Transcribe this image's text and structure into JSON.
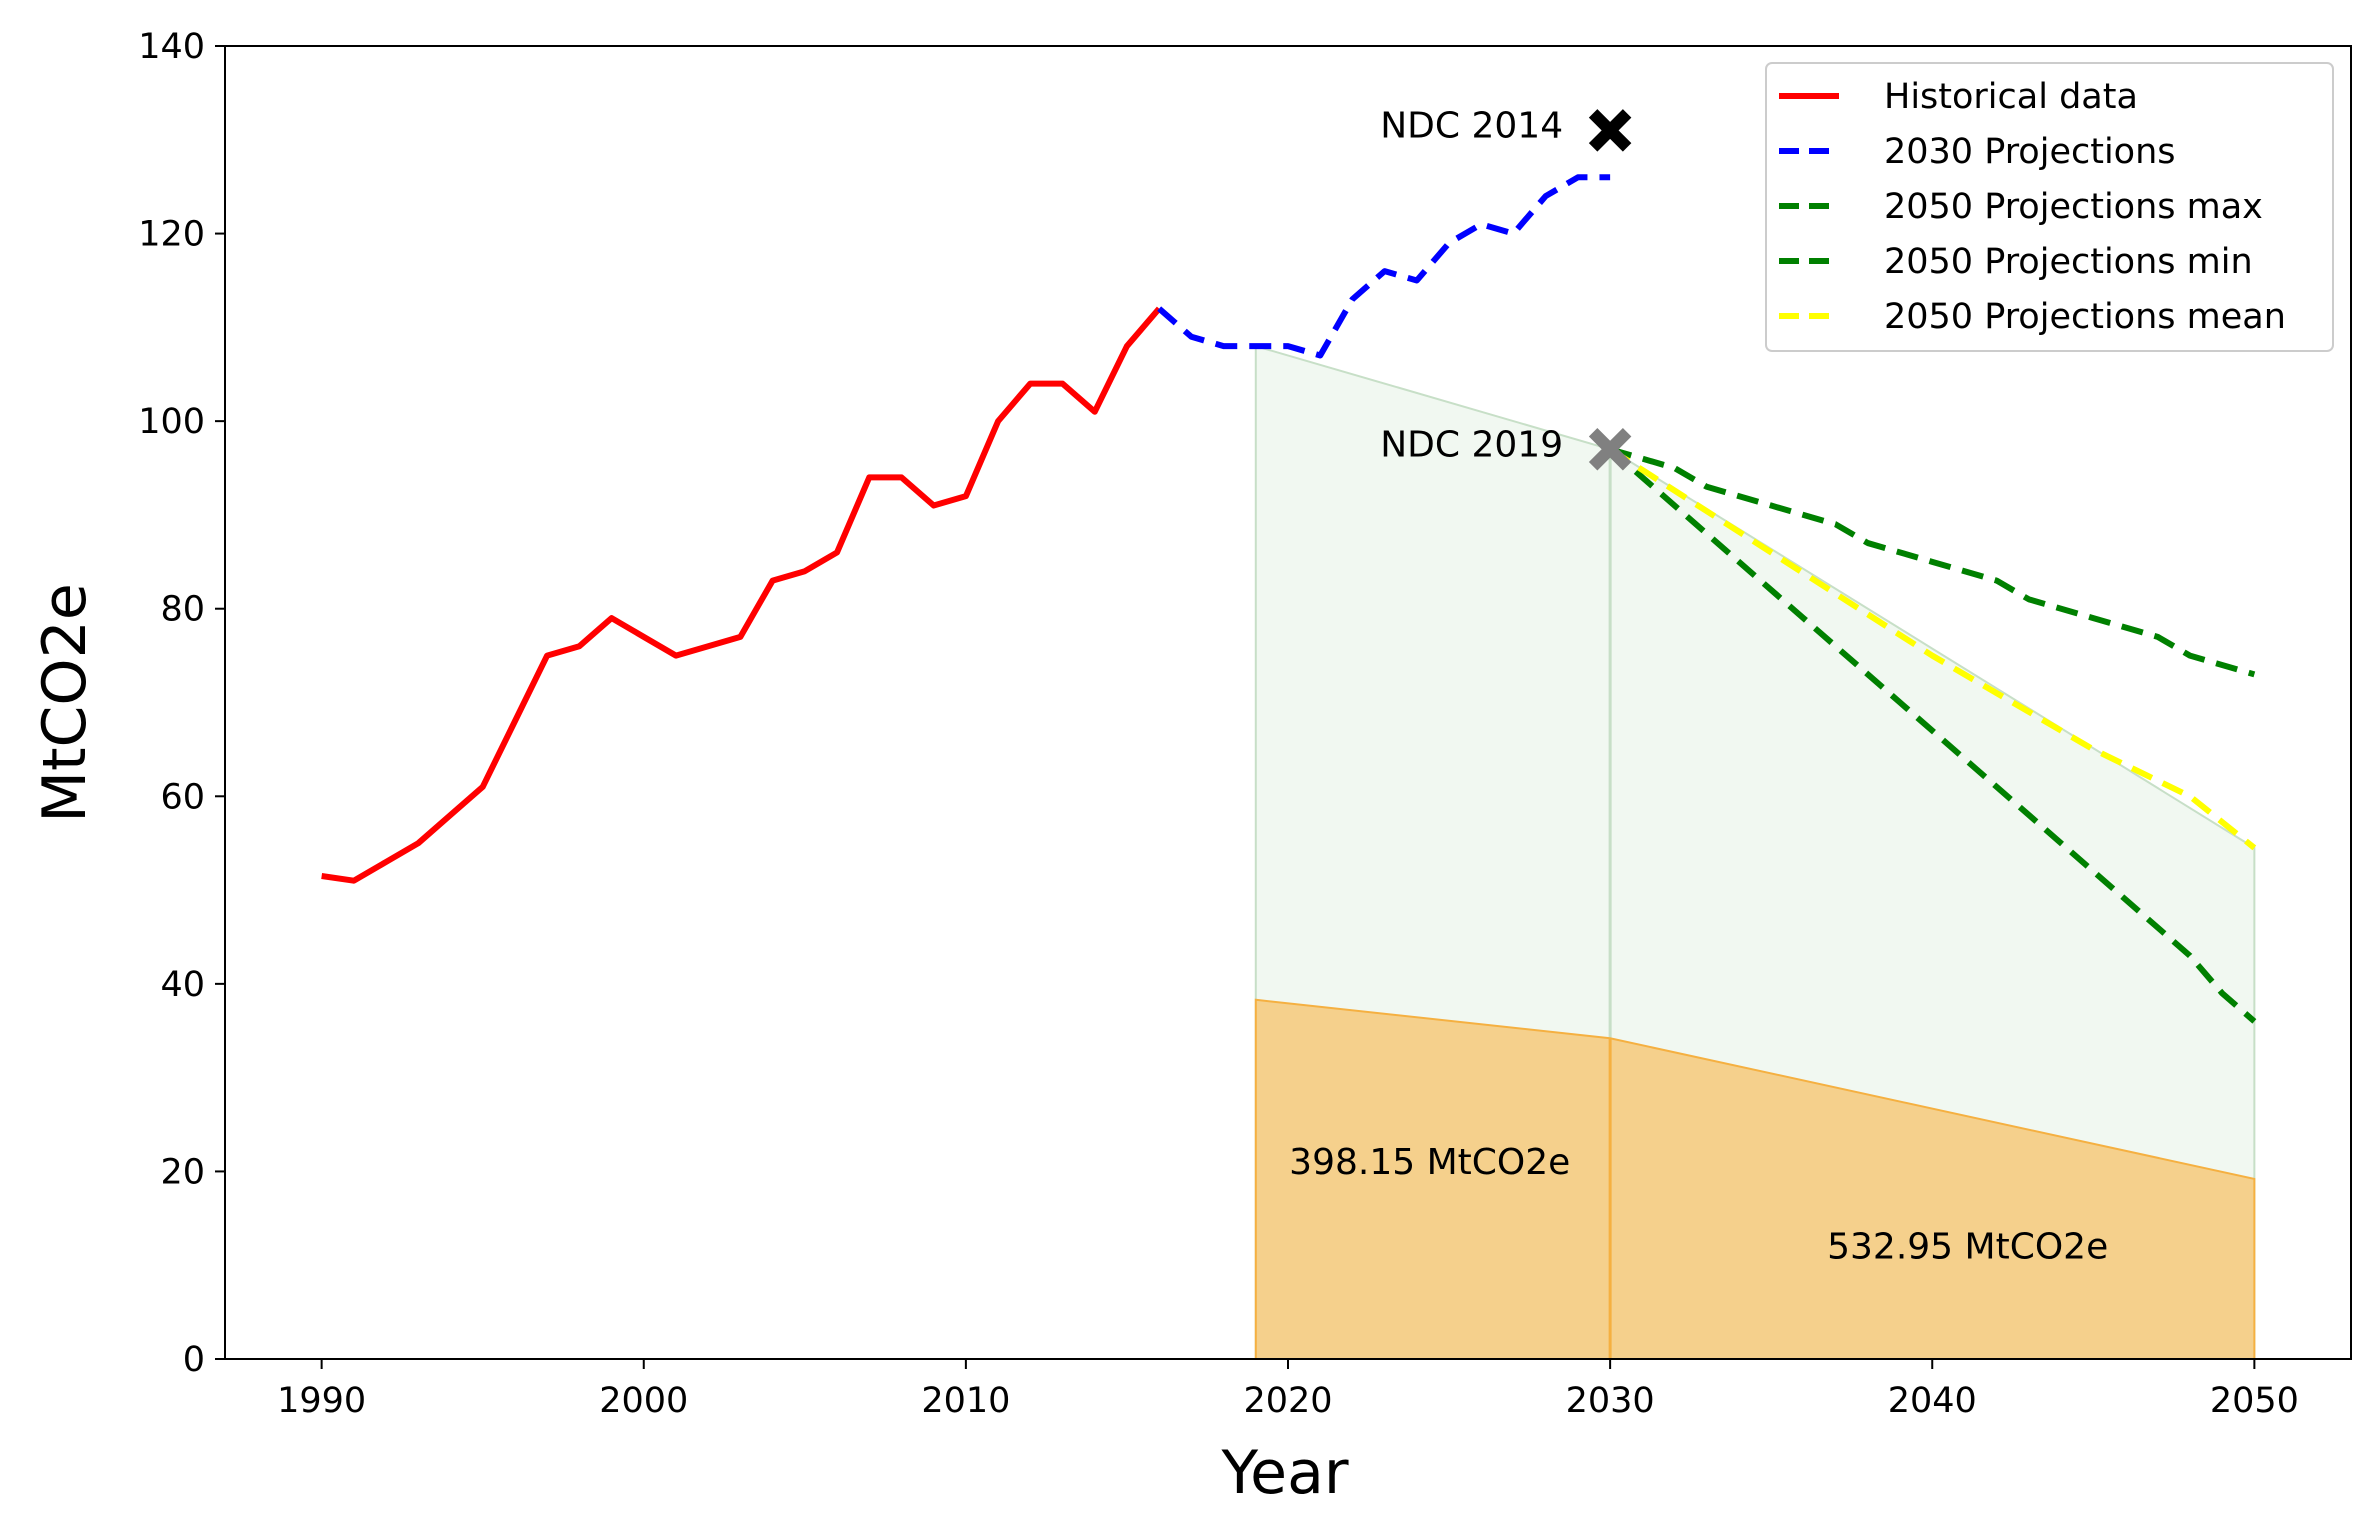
{
  "chart_data": {
    "type": "line",
    "title": "",
    "xlabel": "Year",
    "ylabel": "MtCO2e",
    "xlim": [
      1987,
      2053
    ],
    "ylim": [
      0,
      140
    ],
    "xticks": [
      1990,
      2000,
      2010,
      2020,
      2030,
      2040,
      2050
    ],
    "yticks": [
      0,
      20,
      40,
      60,
      80,
      100,
      120,
      140
    ],
    "legend_position": "top-right",
    "colors": {
      "historical": "#ff0000",
      "proj2030": "#0000ff",
      "proj2050": "#008000",
      "mean2050": "#ffff00",
      "green_fill": "#e6f3e6",
      "orange_fill": "#f5d08c",
      "orange_edge": "#f5b041",
      "ndc2014_marker": "#000000",
      "ndc2019_marker": "#808080"
    },
    "series": [
      {
        "key": "historical",
        "name": "Historical data",
        "style": "solid",
        "x": [
          1990,
          1991,
          1992,
          1993,
          1994,
          1995,
          1996,
          1997,
          1998,
          1999,
          2000,
          2001,
          2002,
          2003,
          2004,
          2005,
          2006,
          2007,
          2008,
          2009,
          2010,
          2011,
          2012,
          2013,
          2014,
          2015,
          2016
        ],
        "y": [
          51.5,
          51,
          53,
          55,
          58,
          61,
          68,
          75,
          76,
          79,
          77,
          75,
          76,
          77,
          83,
          84,
          86,
          94,
          94,
          91,
          92,
          100,
          104,
          104,
          101,
          108,
          112
        ]
      },
      {
        "key": "proj2030",
        "name": "2030 Projections",
        "style": "dashed",
        "x": [
          2016,
          2017,
          2018,
          2019,
          2020,
          2021,
          2022,
          2023,
          2024,
          2025,
          2026,
          2027,
          2028,
          2029,
          2030
        ],
        "y": [
          112,
          109,
          108,
          108,
          108,
          107,
          113,
          116,
          115,
          119,
          121,
          120,
          124,
          126,
          126
        ]
      },
      {
        "key": "max2050",
        "name": "2050 Projections max",
        "style": "dashed",
        "x": [
          2030,
          2032,
          2033,
          2035,
          2037,
          2038,
          2040,
          2042,
          2043,
          2045,
          2047,
          2048,
          2050
        ],
        "y": [
          97,
          95,
          93,
          91,
          89,
          87,
          85,
          83,
          81,
          79,
          77,
          75,
          73
        ]
      },
      {
        "key": "min2050",
        "name": "2050 Projections min",
        "style": "dashed",
        "x": [
          2030,
          2033,
          2036,
          2039,
          2042,
          2045,
          2048,
          2049,
          2050
        ],
        "y": [
          97,
          88,
          79,
          70,
          61,
          52,
          43,
          39,
          36
        ]
      },
      {
        "key": "mean2050",
        "name": "2050 Projections mean",
        "style": "dashed",
        "x": [
          2030,
          2035,
          2040,
          2045,
          2048,
          2050
        ],
        "y": [
          97,
          86,
          75,
          65,
          60,
          54.5
        ]
      }
    ],
    "shaded_regions": [
      {
        "name": "pathway-envelope",
        "x": [
          2019,
          2030,
          2050
        ],
        "y_top": [
          108,
          97,
          54.5
        ],
        "y_bottom": [
          0,
          0,
          0
        ]
      },
      {
        "name": "carbon-budget",
        "x": [
          2019,
          2030,
          2050
        ],
        "y_top": [
          38.3,
          34.2,
          19.2
        ],
        "y_bottom": [
          0,
          0,
          0
        ]
      }
    ],
    "markers": [
      {
        "key": "ndc2014",
        "label": "NDC 2014",
        "x": 2030,
        "y": 131
      },
      {
        "key": "ndc2019",
        "label": "NDC 2019",
        "x": 2030,
        "y": 97
      }
    ],
    "annotations": [
      {
        "key": "budget1",
        "text": "398.15 MtCO2e",
        "x": 2024.4,
        "y": 21
      },
      {
        "key": "budget2",
        "text": "532.95 MtCO2e",
        "x": 2041.1,
        "y": 12
      }
    ]
  }
}
